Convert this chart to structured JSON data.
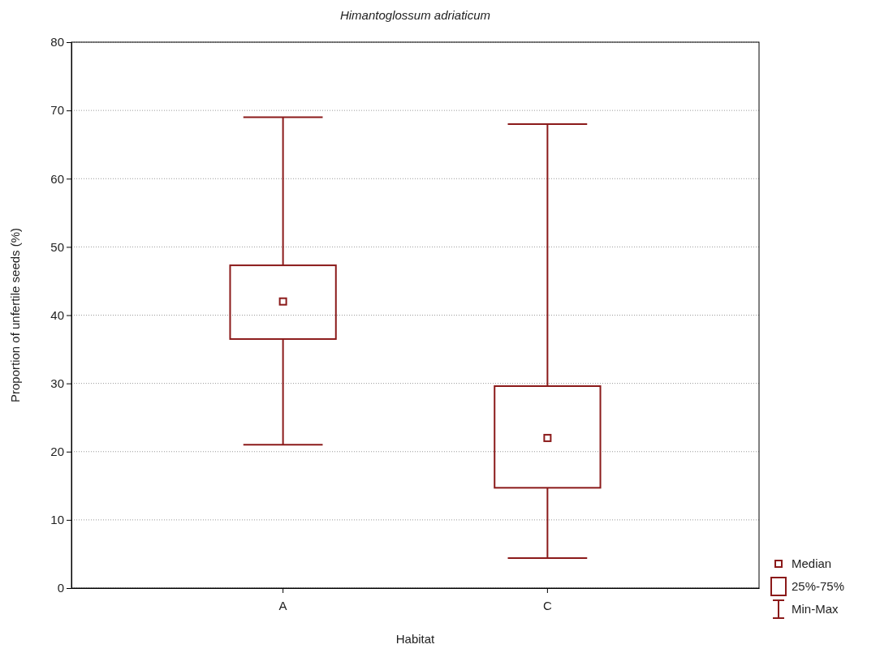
{
  "chart_data": {
    "type": "box",
    "title": "Himantoglossum adriaticum",
    "xlabel": "Habitat",
    "ylabel": "Proportion of unfertile seeds (%)",
    "categories": [
      "A",
      "C"
    ],
    "color": "#8b1a1a",
    "boxes": [
      {
        "low": 21,
        "q1": 36.5,
        "median": 42,
        "q3": 47.3,
        "high": 69
      },
      {
        "low": 4.4,
        "q1": 14.7,
        "median": 22,
        "q3": 29.6,
        "high": 68
      }
    ],
    "ylim": [
      0,
      80
    ],
    "yticks": [
      0,
      10,
      20,
      30,
      40,
      50,
      60,
      70,
      80
    ],
    "grid": "y",
    "annotations": [
      "Median",
      "25%-75%",
      "Min-Max"
    ]
  }
}
